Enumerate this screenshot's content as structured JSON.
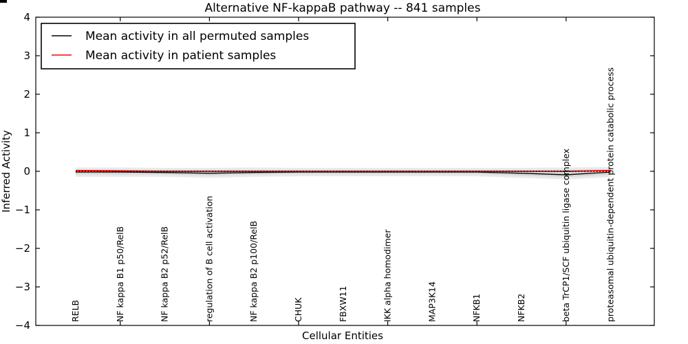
{
  "figure": {
    "title": "Alternative NF-kappaB pathway -- 841 samples",
    "xlabel": "Cellular Entities",
    "ylabel": "Inferred Activity"
  },
  "chart_data": {
    "type": "line",
    "title": "Alternative NF-kappaB pathway -- 841 samples",
    "xlabel": "Cellular Entities",
    "ylabel": "Inferred Activity",
    "ylim": [
      -4,
      4
    ],
    "grid": false,
    "legend_position": "upper left",
    "yticks": [
      4,
      3,
      2,
      1,
      0,
      -1,
      -2,
      -3,
      -4
    ],
    "ytick_labels": [
      "4",
      "3",
      "2",
      "1",
      "0",
      "−1",
      "−2",
      "−3",
      "−4"
    ],
    "categories": [
      "RELB",
      "NF kappa B1 p50/RelB",
      "NF kappa B2 p52/RelB",
      "regulation of B cell activation",
      "NF kappa B2 p100/RelB",
      "CHUK",
      "FBXW11",
      "IKK alpha homodimer",
      "MAP3K14",
      "NFKB1",
      "NFKB2",
      "beta TrCP1/SCF ubiquitin ligase complex",
      "proteasomal ubiquitin-dependent protein catabolic process"
    ],
    "series": [
      {
        "name": "Mean activity in all permuted samples",
        "color": "#000000",
        "values": [
          -0.02,
          -0.02,
          -0.03,
          -0.05,
          -0.03,
          -0.02,
          -0.02,
          -0.02,
          -0.02,
          -0.02,
          -0.05,
          -0.09,
          -0.02
        ]
      },
      {
        "name": "Mean activity in patient samples",
        "color": "#ff0000",
        "values": [
          0.02,
          0.01,
          0.0,
          0.0,
          0.0,
          0.0,
          0.0,
          0.0,
          0.0,
          0.0,
          0.0,
          0.0,
          0.02
        ]
      }
    ],
    "bands": [
      {
        "name": "permuted-spread-outer",
        "color": "#e9e9e9",
        "upper": [
          0.1,
          0.1,
          0.09,
          0.09,
          0.1,
          0.09,
          0.09,
          0.09,
          0.09,
          0.09,
          0.09,
          0.1,
          0.11
        ],
        "lower": [
          -0.14,
          -0.14,
          -0.14,
          -0.17,
          -0.14,
          -0.13,
          -0.13,
          -0.13,
          -0.13,
          -0.13,
          -0.17,
          -0.21,
          -0.15
        ]
      },
      {
        "name": "permuted-spread-inner",
        "color": "#d7d7d7",
        "upper": [
          0.04,
          0.04,
          0.04,
          0.04,
          0.04,
          0.04,
          0.04,
          0.04,
          0.04,
          0.04,
          0.04,
          0.04,
          0.05
        ],
        "lower": [
          -0.08,
          -0.08,
          -0.08,
          -0.11,
          -0.08,
          -0.07,
          -0.07,
          -0.07,
          -0.07,
          -0.07,
          -0.11,
          -0.15,
          -0.09
        ]
      }
    ],
    "zero_line": {
      "value": 0,
      "style": "dotted",
      "color": "#000000"
    }
  }
}
